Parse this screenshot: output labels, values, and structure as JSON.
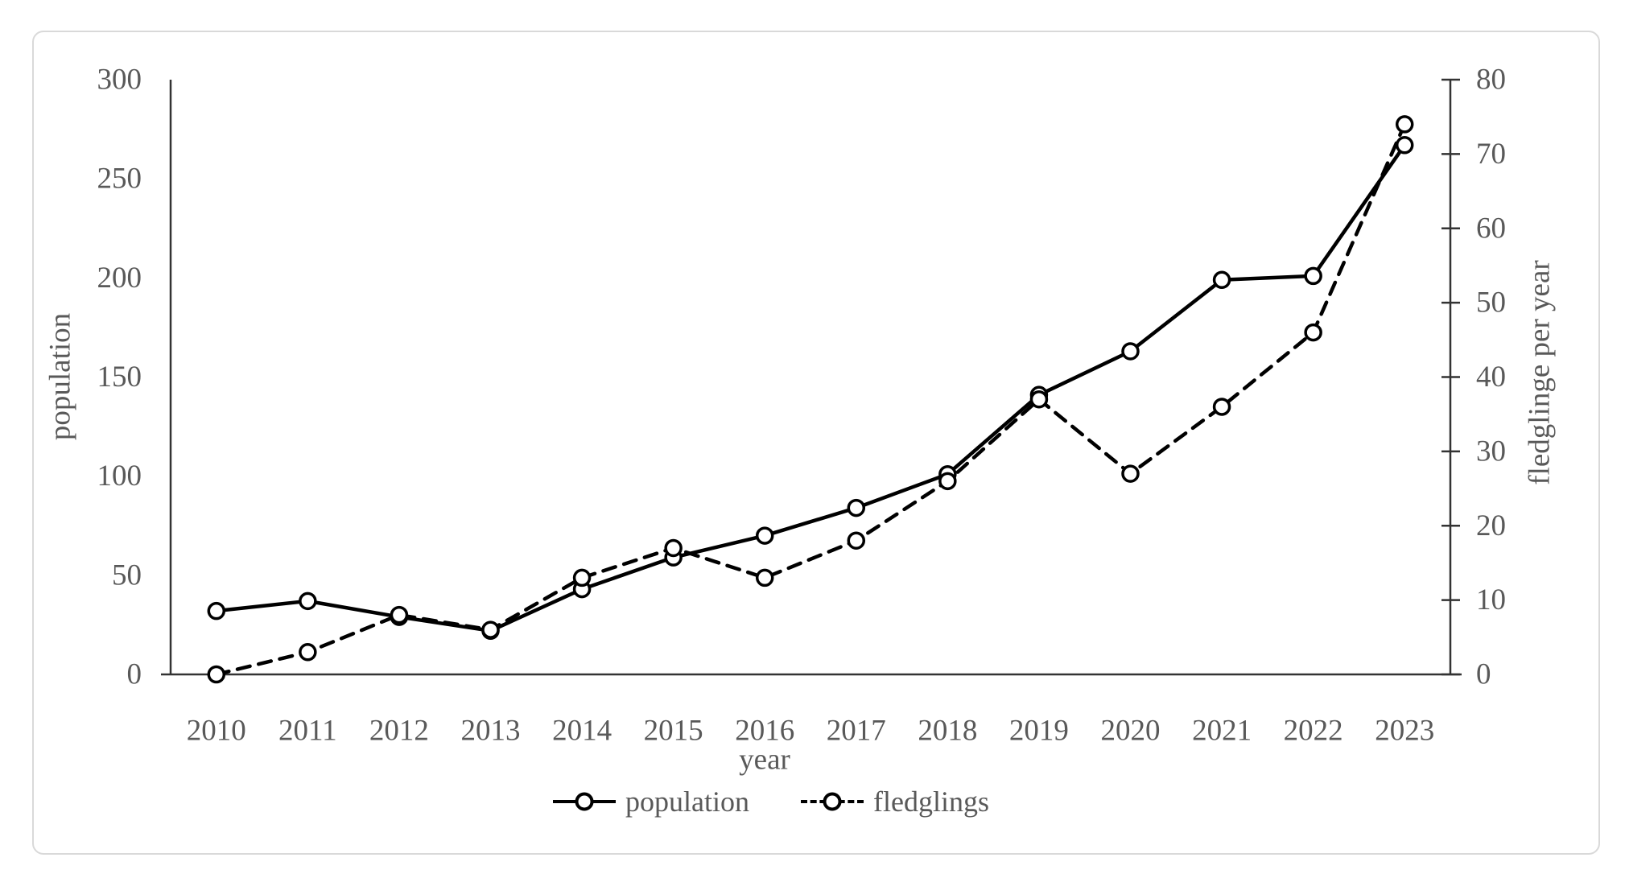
{
  "chart": {
    "frame_border_color": "#d9d9d9",
    "background_color": "#ffffff",
    "text_color": "#595959",
    "axis_line_color": "#333333",
    "series_line_color": "#000000",
    "marker_fill_color": "#ffffff"
  },
  "chart_data": {
    "type": "line",
    "title": "",
    "categories": [
      "2010",
      "2011",
      "2012",
      "2013",
      "2014",
      "2015",
      "2016",
      "2017",
      "2018",
      "2019",
      "2020",
      "2021",
      "2022",
      "2023"
    ],
    "series": [
      {
        "name": "population",
        "axis": "left",
        "style": "solid",
        "marker": "circle",
        "values": [
          32,
          37,
          29,
          22,
          43,
          59,
          70,
          84,
          101,
          141,
          163,
          199,
          201,
          267
        ]
      },
      {
        "name": "fledglings",
        "axis": "right",
        "style": "dashed",
        "marker": "circle",
        "values": [
          0,
          3,
          8,
          6,
          13,
          17,
          13,
          18,
          26,
          37,
          27,
          36,
          46,
          74
        ]
      }
    ],
    "xlabel": "year",
    "left_axis": {
      "label": "population",
      "min": 0,
      "max": 300,
      "step": 50,
      "tick_labels": [
        "300",
        "250",
        "200",
        "150",
        "100",
        "50",
        "0"
      ]
    },
    "right_axis": {
      "label": "fledglinge per year",
      "min": 0,
      "max": 80,
      "step": 10,
      "tick_labels": [
        "80",
        "70",
        "60",
        "50",
        "40",
        "30",
        "20",
        "10",
        "0"
      ]
    },
    "legend": [
      {
        "label": "population",
        "style": "solid"
      },
      {
        "label": "fledglings",
        "style": "dashed"
      }
    ],
    "legend_position": "bottom",
    "grid": false
  }
}
